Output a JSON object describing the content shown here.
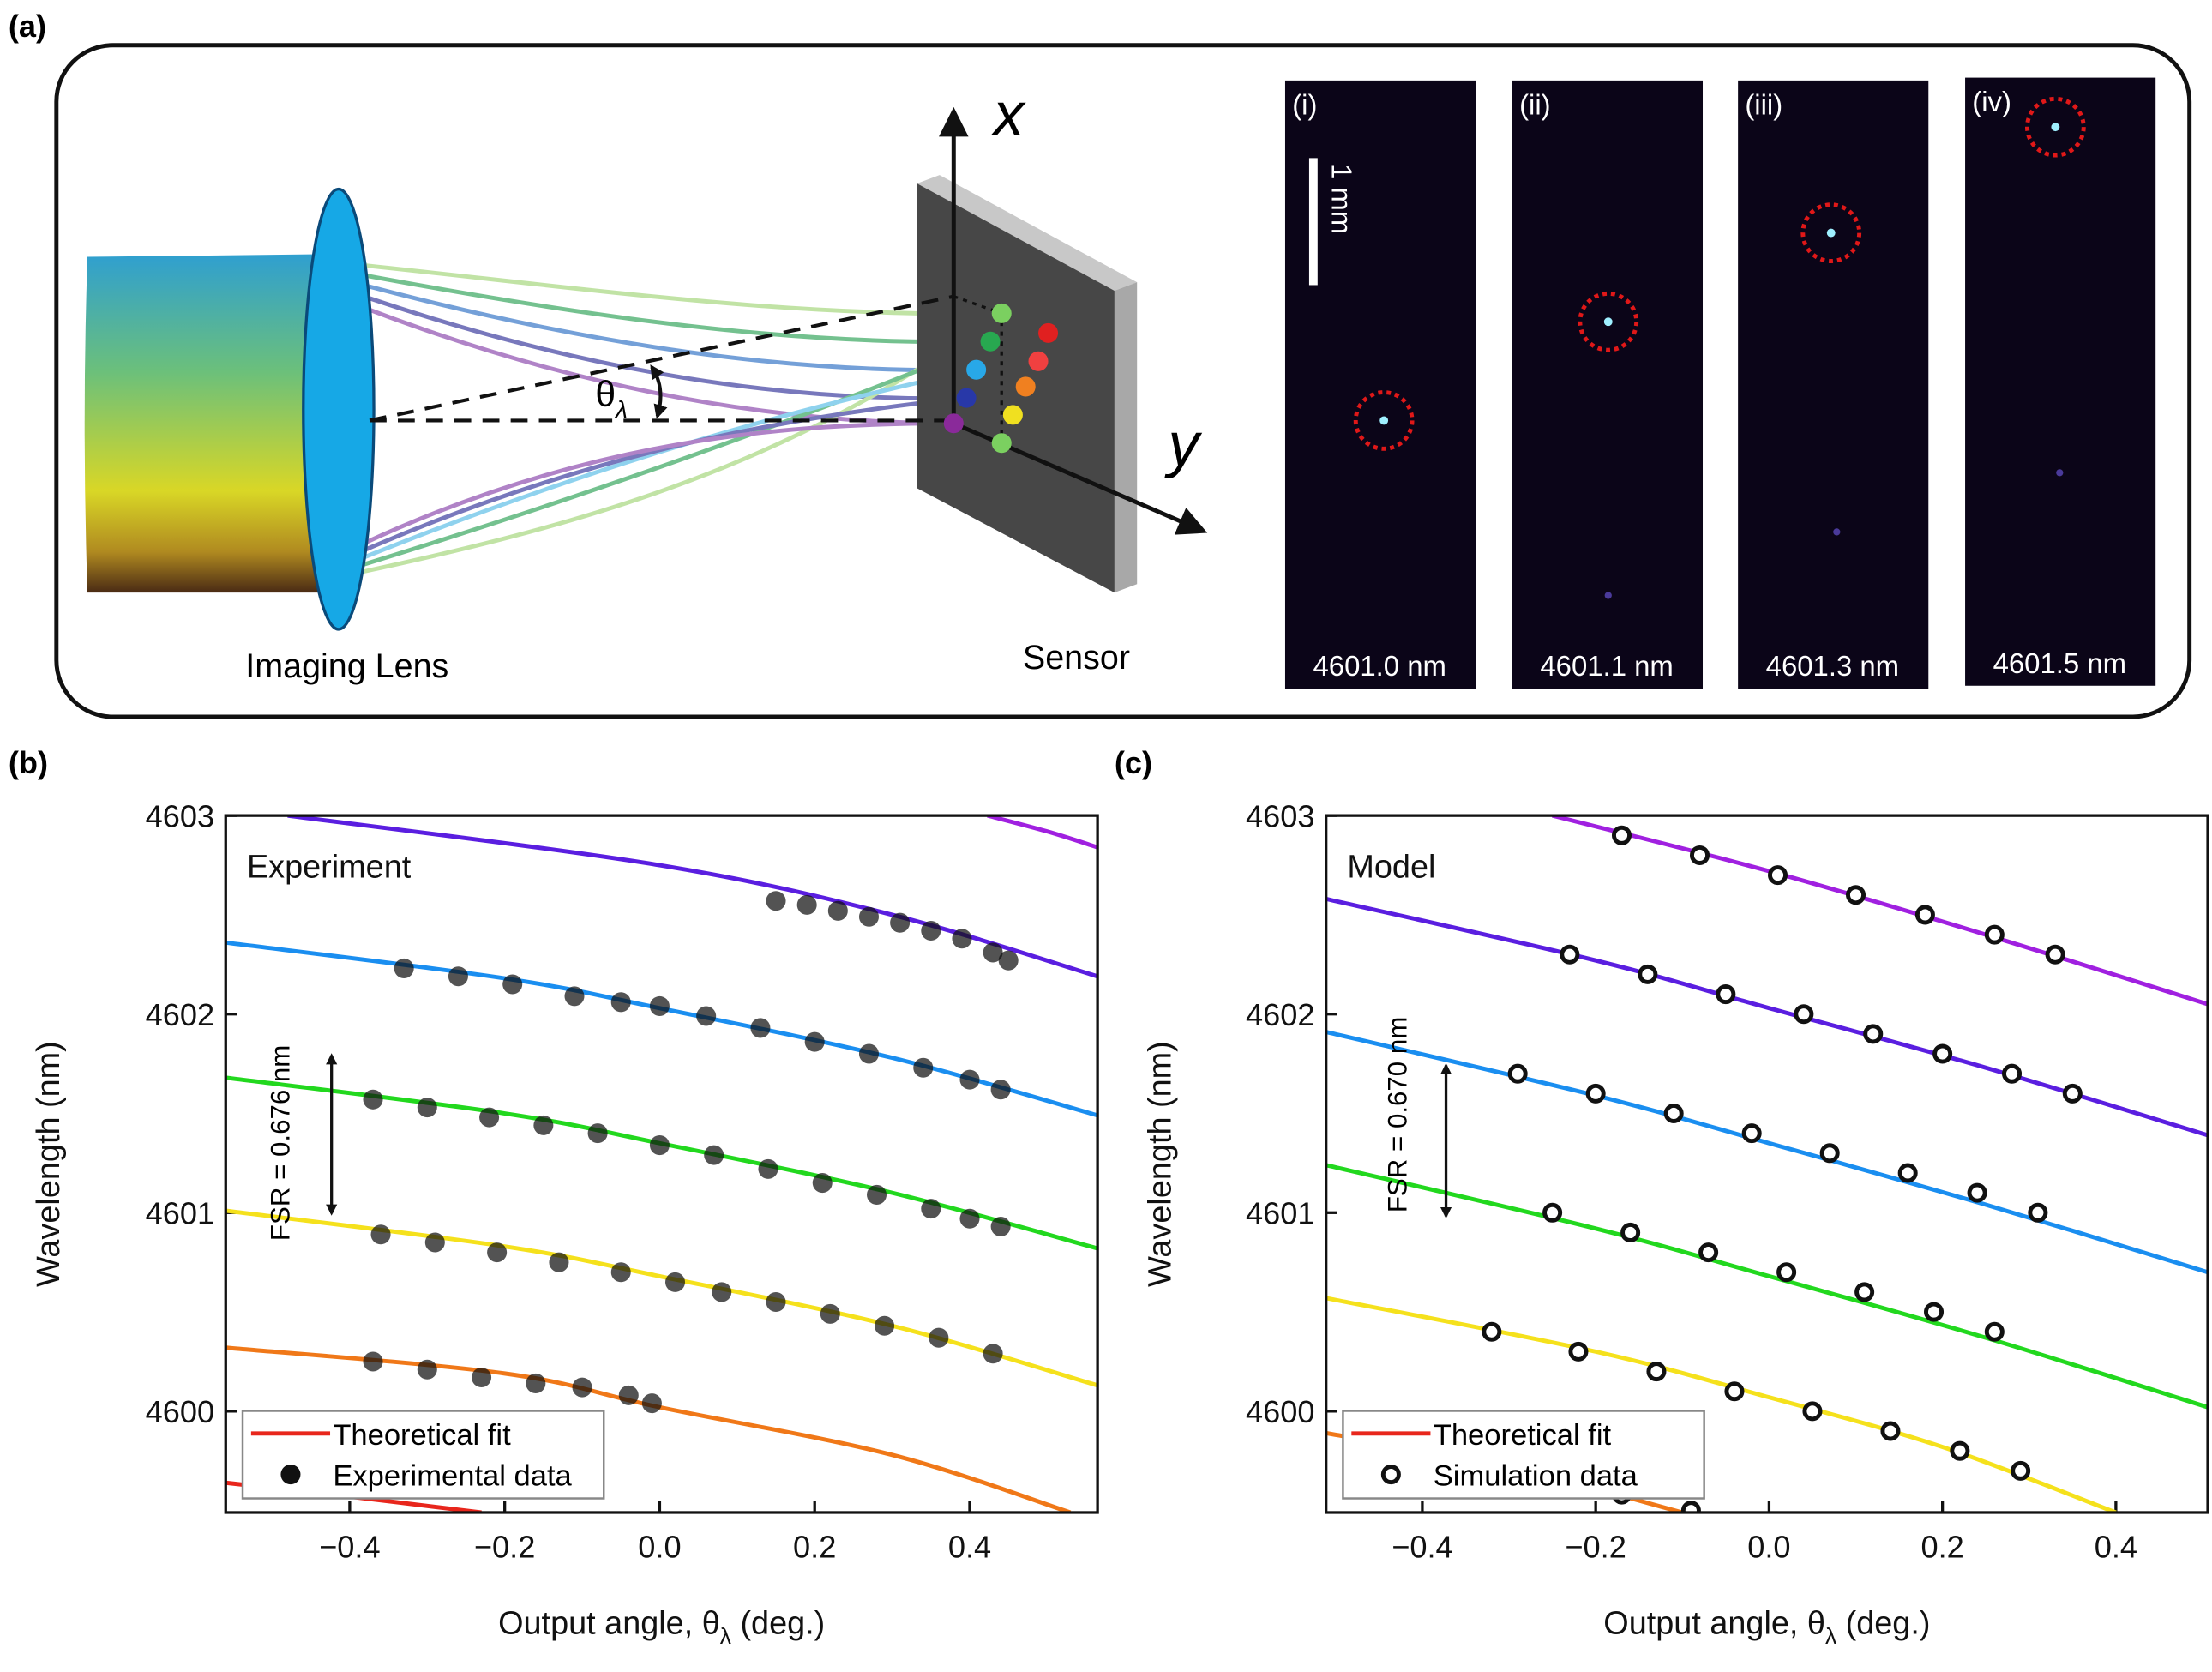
{
  "diagram": {
    "panel_label": "(a)",
    "lens_label": "Imaging Lens",
    "sensor_label": "Sensor",
    "axis_x": "x",
    "axis_y": "y",
    "angle": [
      "θ",
      "λ"
    ],
    "scale_bar": "1 mm",
    "insets": [
      {
        "label": "(i)",
        "wavelength": "4601.0 nm"
      },
      {
        "label": "(ii)",
        "wavelength": "4601.1 nm"
      },
      {
        "label": "(iii)",
        "wavelength": "4601.3 nm"
      },
      {
        "label": "(iv)",
        "wavelength": "4601.5 nm"
      }
    ]
  },
  "chart_data": [
    {
      "type": "line",
      "panel_label": "(b)",
      "annotation": "Experiment",
      "fsr_label": "FSR = 0.676 nm",
      "ylabel": "Wavelength (nm)",
      "xlabel": [
        "Output angle, θ",
        "λ",
        " (deg.)"
      ],
      "xlim": [
        -0.56,
        0.565
      ],
      "ylim": [
        4599.49,
        4603
      ],
      "xticks": [
        {
          "value": -0.4,
          "label": "−0.4"
        },
        {
          "value": -0.2,
          "label": "−0.2"
        },
        {
          "value": 0,
          "label": "0.0"
        },
        0.2,
        0.4
      ],
      "yticks": [
        4600,
        4601,
        4602,
        4603
      ],
      "fit": {
        "name": "Theoretical fit",
        "color": "#e8261c",
        "curves": [
          {
            "color": "#e8261c",
            "x": [
              -0.56,
              -0.4,
              -0.23
            ],
            "values": [
              4599.64,
              4599.57,
              4599.49
            ]
          },
          {
            "color": "#f07818",
            "x": [
              -0.56,
              -0.2,
              0,
              0.3,
              0.53
            ],
            "values": [
              4600.32,
              4600.19,
              4600.02,
              4599.78,
              4599.49
            ]
          },
          {
            "color": "#f5e11c",
            "x": [
              -0.56,
              -0.2,
              0,
              0.3,
              0.565
            ],
            "values": [
              4601.01,
              4600.83,
              4600.68,
              4600.43,
              4600.13
            ]
          },
          {
            "color": "#22d81e",
            "x": [
              -0.56,
              -0.2,
              0,
              0.3,
              0.565
            ],
            "values": [
              4601.68,
              4601.5,
              4601.35,
              4601.1,
              4600.82
            ]
          },
          {
            "color": "#1a8ef0",
            "x": [
              -0.56,
              -0.2,
              0,
              0.3,
              0.565
            ],
            "values": [
              4602.36,
              4602.18,
              4602.03,
              4601.78,
              4601.49
            ]
          },
          {
            "color": "#5a1ee0",
            "x": [
              -0.48,
              0,
              0.3,
              0.565
            ],
            "values": [
              4603,
              4602.75,
              4602.5,
              4602.19
            ]
          },
          {
            "color": "#a020e0",
            "x": [
              0.423,
              0.5,
              0.565
            ],
            "values": [
              4603,
              4602.92,
              4602.84
            ]
          }
        ]
      },
      "data": {
        "name": "Experimental data",
        "marker": "filled",
        "points": [
          {
            "x": [
              0.15,
              0.19,
              0.23,
              0.27,
              0.31,
              0.35,
              0.39,
              0.43,
              0.45
            ],
            "values": [
              4602.57,
              4602.55,
              4602.52,
              4602.49,
              4602.46,
              4602.42,
              4602.38,
              4602.31,
              4602.27
            ]
          },
          {
            "x": [
              -0.33,
              -0.26,
              -0.19,
              -0.11,
              -0.05,
              0.0,
              0.06,
              0.13,
              0.2,
              0.27,
              0.34,
              0.4,
              0.44
            ],
            "values": [
              4602.23,
              4602.19,
              4602.15,
              4602.09,
              4602.06,
              4602.04,
              4601.99,
              4601.93,
              4601.86,
              4601.8,
              4601.73,
              4601.67,
              4601.62
            ]
          },
          {
            "x": [
              -0.37,
              -0.3,
              -0.22,
              -0.15,
              -0.08,
              0.0,
              0.07,
              0.14,
              0.21,
              0.28,
              0.35,
              0.4,
              0.44
            ],
            "values": [
              4601.57,
              4601.53,
              4601.48,
              4601.44,
              4601.4,
              4601.34,
              4601.29,
              4601.22,
              4601.15,
              4601.09,
              4601.02,
              4600.97,
              4600.93
            ]
          },
          {
            "x": [
              -0.36,
              -0.29,
              -0.21,
              -0.13,
              -0.05,
              0.02,
              0.08,
              0.15,
              0.22,
              0.29,
              0.36,
              0.43
            ],
            "values": [
              4600.89,
              4600.85,
              4600.8,
              4600.75,
              4600.7,
              4600.65,
              4600.6,
              4600.55,
              4600.49,
              4600.43,
              4600.37,
              4600.29
            ]
          },
          {
            "x": [
              -0.37,
              -0.3,
              -0.23,
              -0.16,
              -0.1,
              -0.04,
              -0.01
            ],
            "values": [
              4600.25,
              4600.21,
              4600.17,
              4600.14,
              4600.12,
              4600.08,
              4600.04
            ]
          }
        ]
      }
    },
    {
      "type": "line",
      "panel_label": "(c)",
      "annotation": "Model",
      "fsr_label": "FSR = 0.670 nm",
      "ylabel": "Wavelength (nm)",
      "xlabel": [
        "Output angle, θ",
        "λ",
        " (deg.)"
      ],
      "xlim": [
        -0.511,
        0.506
      ],
      "ylim": [
        4599.49,
        4603
      ],
      "xticks": [
        {
          "value": -0.4,
          "label": "−0.4"
        },
        {
          "value": -0.2,
          "label": "−0.2"
        },
        {
          "value": 0,
          "label": "0.0"
        },
        0.2,
        0.4
      ],
      "yticks": [
        4600,
        4601,
        4602,
        4603
      ],
      "fit": {
        "name": "Theoretical fit",
        "color": "#e8261c",
        "curves": [
          {
            "color": "#f07818",
            "x": [
              -0.511,
              -0.3,
              -0.1
            ],
            "values": [
              4599.89,
              4599.72,
              4599.49
            ]
          },
          {
            "color": "#f5e11c",
            "x": [
              -0.511,
              -0.2,
              0,
              0.2,
              0.4
            ],
            "values": [
              4600.57,
              4600.3,
              4600.07,
              4599.82,
              4599.49
            ]
          },
          {
            "color": "#22d81e",
            "x": [
              -0.511,
              -0.2,
              0,
              0.25,
              0.506
            ],
            "values": [
              4601.24,
              4600.92,
              4600.68,
              4600.37,
              4600.02
            ]
          },
          {
            "color": "#1a8ef0",
            "x": [
              -0.511,
              -0.2,
              0,
              0.25,
              0.506
            ],
            "values": [
              4601.91,
              4601.59,
              4601.35,
              4601.04,
              4600.7
            ]
          },
          {
            "color": "#5a1ee0",
            "x": [
              -0.511,
              -0.2,
              0,
              0.25,
              0.506
            ],
            "values": [
              4602.58,
              4602.27,
              4602.03,
              4601.73,
              4601.39
            ]
          },
          {
            "color": "#a020e0",
            "x": [
              -0.25,
              0,
              0.25,
              0.506
            ],
            "values": [
              4603,
              4602.72,
              4602.4,
              4602.05
            ]
          }
        ]
      },
      "data": {
        "name": "Simulation data",
        "marker": "open",
        "points": [
          {
            "x": [
              -0.17,
              -0.08,
              0.01,
              0.1,
              0.18,
              0.26,
              0.33
            ],
            "values": [
              4602.9,
              4602.8,
              4602.7,
              4602.6,
              4602.5,
              4602.4,
              4602.3
            ]
          },
          {
            "x": [
              -0.23,
              -0.14,
              -0.05,
              0.04,
              0.12,
              0.2,
              0.28,
              0.35
            ],
            "values": [
              4602.3,
              4602.2,
              4602.1,
              4602.0,
              4601.9,
              4601.8,
              4601.7,
              4601.6
            ]
          },
          {
            "x": [
              -0.29,
              -0.2,
              -0.11,
              -0.02,
              0.07,
              0.16,
              0.24,
              0.31
            ],
            "values": [
              4601.7,
              4601.6,
              4601.5,
              4601.4,
              4601.3,
              4601.2,
              4601.1,
              4601.0
            ]
          },
          {
            "x": [
              -0.25,
              -0.16,
              -0.07,
              0.02,
              0.11,
              0.19,
              0.26
            ],
            "values": [
              4601.0,
              4600.9,
              4600.8,
              4600.7,
              4600.6,
              4600.5,
              4600.4
            ]
          },
          {
            "x": [
              -0.32,
              -0.22,
              -0.13,
              -0.04,
              0.05,
              0.14,
              0.22,
              0.29
            ],
            "values": [
              4600.4,
              4600.3,
              4600.2,
              4600.1,
              4600.0,
              4599.9,
              4599.8,
              4599.7
            ]
          },
          {
            "x": [
              -0.17,
              -0.09
            ],
            "values": [
              4599.58,
              4599.5
            ]
          }
        ]
      }
    }
  ]
}
